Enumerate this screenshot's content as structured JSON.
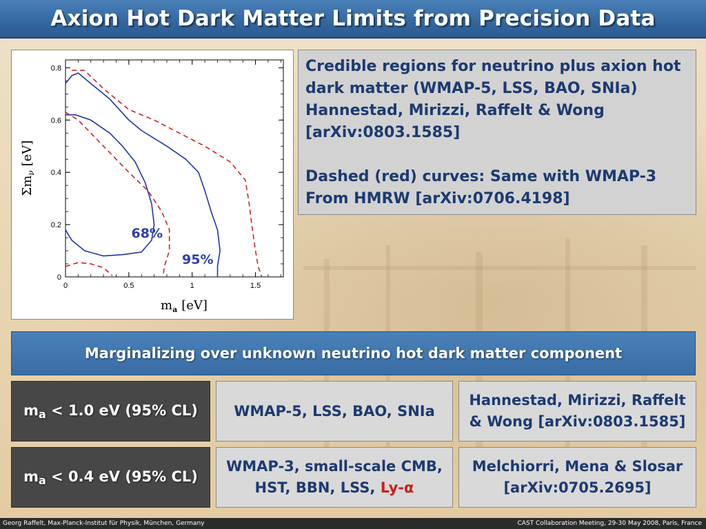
{
  "title": "Axion Hot Dark Matter Limits from Precision Data",
  "chart_data": {
    "type": "line",
    "xlabel": "m",
    "xlabel_sub": "a",
    "xlabel_unit": "[eV]",
    "ylabel": "Σm",
    "ylabel_sub": "ν",
    "ylabel_unit": "[eV]",
    "xlim": [
      0,
      1.72
    ],
    "ylim": [
      0,
      0.83
    ],
    "x_ticks": [
      "0",
      "0.5",
      "1",
      "1.5"
    ],
    "x_tick_values": [
      0,
      0.5,
      1,
      1.5
    ],
    "y_ticks": [
      "0",
      "0.2",
      "0.4",
      "0.6",
      "0.8"
    ],
    "y_tick_values": [
      0,
      0.2,
      0.4,
      0.6,
      0.8
    ],
    "grid": false,
    "annotations": [
      {
        "text": "68%",
        "x": 0.52,
        "y": 0.15,
        "color": "#2c3fb0"
      },
      {
        "text": "95%",
        "x": 0.92,
        "y": 0.05,
        "color": "#2c3fb0"
      }
    ],
    "series": [
      {
        "style": "solid",
        "color": "#2233aa",
        "points": [
          [
            0,
            0.18
          ],
          [
            0.05,
            0.14
          ],
          [
            0.15,
            0.1
          ],
          [
            0.3,
            0.08
          ],
          [
            0.45,
            0.085
          ],
          [
            0.6,
            0.095
          ],
          [
            0.68,
            0.14
          ],
          [
            0.7,
            0.2
          ],
          [
            0.68,
            0.28
          ],
          [
            0.63,
            0.36
          ],
          [
            0.55,
            0.44
          ],
          [
            0.45,
            0.5
          ],
          [
            0.35,
            0.55
          ],
          [
            0.2,
            0.6
          ],
          [
            0.08,
            0.62
          ],
          [
            0,
            0.62
          ]
        ]
      },
      {
        "style": "solid",
        "color": "#2233aa",
        "points": [
          [
            0,
            0.74
          ],
          [
            0.05,
            0.77
          ],
          [
            0.1,
            0.78
          ],
          [
            0.2,
            0.74
          ],
          [
            0.35,
            0.68
          ],
          [
            0.5,
            0.6
          ],
          [
            0.6,
            0.56
          ],
          [
            0.8,
            0.5
          ],
          [
            0.95,
            0.45
          ],
          [
            1.05,
            0.4
          ],
          [
            1.1,
            0.33
          ],
          [
            1.15,
            0.25
          ],
          [
            1.2,
            0.18
          ],
          [
            1.22,
            0.1
          ],
          [
            1.2,
            0.04
          ],
          [
            1.2,
            0
          ]
        ]
      },
      {
        "style": "dashed",
        "color": "#cc2222",
        "points": [
          [
            0,
            0.04
          ],
          [
            0.1,
            0.055
          ],
          [
            0.2,
            0.05
          ],
          [
            0.3,
            0.035
          ],
          [
            0.37,
            0.005
          ]
        ]
      },
      {
        "style": "dashed",
        "color": "#cc2222",
        "points": [
          [
            0,
            0.63
          ],
          [
            0.1,
            0.6
          ],
          [
            0.3,
            0.5
          ],
          [
            0.5,
            0.4
          ],
          [
            0.65,
            0.33
          ],
          [
            0.76,
            0.25
          ],
          [
            0.82,
            0.18
          ],
          [
            0.82,
            0.1
          ],
          [
            0.78,
            0.04
          ],
          [
            0.77,
            0
          ]
        ]
      },
      {
        "style": "dashed",
        "color": "#cc2222",
        "points": [
          [
            0.05,
            0.79
          ],
          [
            0.15,
            0.79
          ],
          [
            0.3,
            0.72
          ],
          [
            0.5,
            0.64
          ],
          [
            0.7,
            0.6
          ],
          [
            0.9,
            0.55
          ],
          [
            1.1,
            0.5
          ],
          [
            1.3,
            0.44
          ],
          [
            1.42,
            0.37
          ],
          [
            1.45,
            0.28
          ],
          [
            1.47,
            0.2
          ],
          [
            1.5,
            0.1
          ],
          [
            1.52,
            0.04
          ],
          [
            1.55,
            0
          ]
        ]
      }
    ]
  },
  "info": {
    "line1": "Credible regions for neutrino plus axion hot",
    "line2": "dark matter (WMAP-5, LSS, BAO, SNIa)",
    "line3": "Hannestad, Mirizzi, Raffelt & Wong",
    "line4": "[arXiv:0803.1585]",
    "line5": "Dashed (red) curves: Same with WMAP-3",
    "line6": "From HMRW [arXiv:0706.4198]"
  },
  "banner": "Marginalizing over unknown neutrino hot dark matter component",
  "rows": [
    {
      "limit_prefix": "m",
      "limit_sub": "a",
      "limit_rest": " < 1.0 eV (95% CL)",
      "data_line1": "WMAP-5, LSS, BAO, SNIa",
      "data_line2": "",
      "data_red": "",
      "ref_line1": "Hannestad, Mirizzi, Raffelt",
      "ref_line2": "& Wong [arXiv:0803.1585]"
    },
    {
      "limit_prefix": "m",
      "limit_sub": "a",
      "limit_rest": " < 0.4 eV (95% CL)",
      "data_line1": "WMAP-3, small-scale CMB,",
      "data_line2": "HST, BBN, LSS, ",
      "data_red": "Ly-α",
      "ref_line1": "Melchiorri, Mena & Slosar",
      "ref_line2": "[arXiv:0705.2695]"
    }
  ],
  "footer": {
    "left": "Georg Raffelt, Max-Planck-Institut für Physik, München, Germany",
    "right": "CAST Collaboration Meeting, 29-30 May 2008, Paris, France"
  }
}
